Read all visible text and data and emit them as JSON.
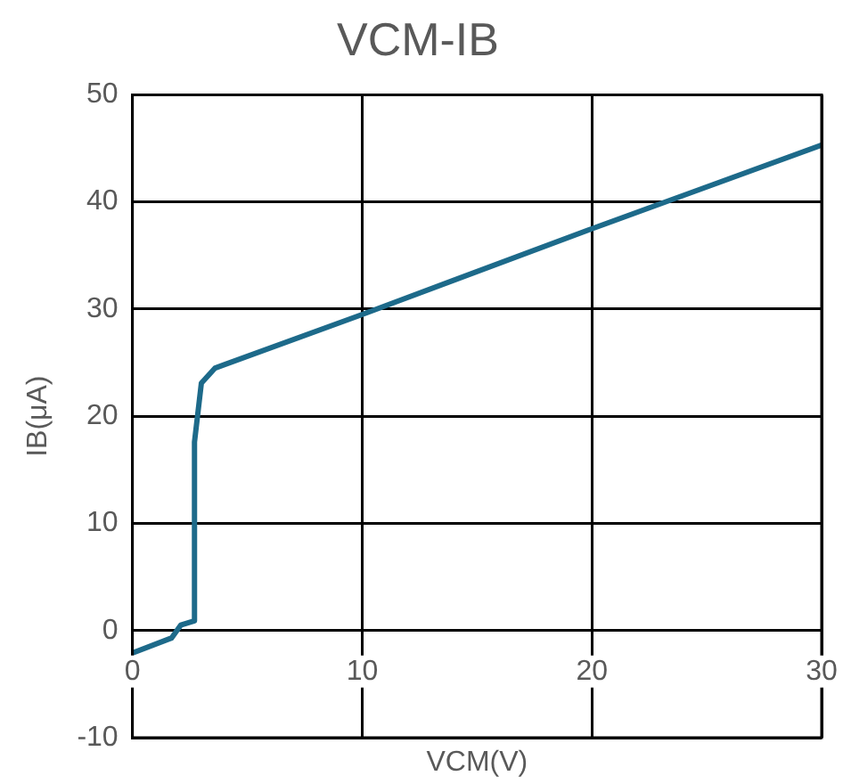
{
  "chart_data": {
    "type": "line",
    "title": "VCM-IB",
    "xlabel": "VCM(V)",
    "ylabel": "IB(μA)",
    "series": [
      {
        "color": "#1d6a8a",
        "x": [
          0,
          1.7,
          2.1,
          2.7,
          2.7,
          3.0,
          3.6,
          10,
          20,
          30
        ],
        "values": [
          -2.1,
          -0.7,
          0.5,
          0.9,
          17.6,
          23.1,
          24.5,
          29.5,
          37.5,
          45.3
        ]
      }
    ],
    "xlim": [
      0,
      30
    ],
    "xticks": [
      0,
      10,
      20,
      30
    ],
    "ylim": [
      -10,
      50
    ],
    "yticks": [
      -10,
      0,
      10,
      20,
      30,
      40,
      50
    ],
    "grid": true,
    "legend": false,
    "marker": "none",
    "line_style": "solid"
  }
}
